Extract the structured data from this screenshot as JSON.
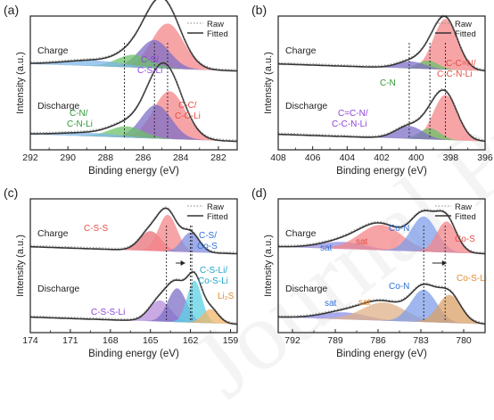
{
  "watermark": "Journal Pre-proof",
  "chart_data": [
    {
      "type": "line",
      "panel_label": "(a)",
      "xlabel": "Binding energy (eV)",
      "ylabel": "Intensity (a.u.)",
      "xlim": [
        292,
        281
      ],
      "xticks": [
        292,
        290,
        288,
        286,
        284,
        282
      ],
      "legend": [
        "Raw",
        "Fitted"
      ],
      "legend_position": "top-right",
      "spectrum_labels": [
        "Charge",
        "Discharge"
      ],
      "peak_labels": [
        {
          "text": "C-S/",
          "x": 285.3,
          "color": "#8e44d9"
        },
        {
          "text": "C-S-Li",
          "x": 285.3,
          "color": "#8e44d9"
        },
        {
          "text": "C-C/",
          "x": 283.3,
          "color": "#e34f45"
        },
        {
          "text": "C-C-Li",
          "x": 283.3,
          "color": "#e34f45"
        },
        {
          "text": "C-N/",
          "x": 288.2,
          "color": "#2e9a35"
        },
        {
          "text": "C-N-Li",
          "x": 288.2,
          "color": "#2e9a35"
        }
      ],
      "dashed_markers": [
        287.0,
        285.4,
        284.7
      ],
      "series": [
        {
          "name": "Charge",
          "offset": 0.5,
          "peaks": [
            {
              "center": 284.7,
              "height": 0.32,
              "width": 0.85,
              "color": "#f4868a"
            },
            {
              "center": 285.4,
              "height": 0.2,
              "width": 0.8,
              "color": "#7d6fc7"
            },
            {
              "center": 286.5,
              "height": 0.09,
              "width": 0.9,
              "color": "#6cc26a"
            },
            {
              "center": 288.6,
              "height": 0.04,
              "width": 1.6,
              "color": "#7fb7e8"
            }
          ]
        },
        {
          "name": "Discharge",
          "offset": 0.0,
          "peaks": [
            {
              "center": 284.6,
              "height": 0.34,
              "width": 0.85,
              "color": "#f4868a"
            },
            {
              "center": 285.3,
              "height": 0.24,
              "width": 0.8,
              "color": "#7d6fc7"
            },
            {
              "center": 286.9,
              "height": 0.08,
              "width": 0.9,
              "color": "#6cc26a"
            },
            {
              "center": 288.8,
              "height": 0.025,
              "width": 1.6,
              "color": "#7fb7e8"
            }
          ]
        }
      ]
    },
    {
      "type": "line",
      "panel_label": "(b)",
      "xlabel": "Binding energy (eV)",
      "ylabel": "Intensity (a.u.)",
      "xlim": [
        408,
        396
      ],
      "xticks": [
        408,
        406,
        404,
        402,
        400,
        398,
        396
      ],
      "legend": [
        "Raw",
        "Fitted"
      ],
      "legend_position": "top-right",
      "spectrum_labels": [
        "Charge",
        "Discharge"
      ],
      "peak_labels": [
        {
          "text": "C-C=N/",
          "x": 397.6,
          "color": "#e34f45"
        },
        {
          "text": "C-C-N-Li",
          "x": 397.6,
          "color": "#e34f45"
        },
        {
          "text": "C-N",
          "x": 400.3,
          "color": "#2e9a35"
        },
        {
          "text": "C=C-N/",
          "x": 402.3,
          "color": "#8e44d9"
        },
        {
          "text": "C-C-N-Li",
          "x": 402.3,
          "color": "#8e44d9"
        }
      ],
      "dashed_markers": [
        400.4,
        399.2,
        398.3
      ],
      "series": [
        {
          "name": "Charge",
          "offset": 0.5,
          "peaks": [
            {
              "center": 398.3,
              "height": 0.36,
              "width": 0.7,
              "color": "#f4868a"
            },
            {
              "center": 399.3,
              "height": 0.06,
              "width": 0.6,
              "color": "#6cc26a"
            },
            {
              "center": 400.3,
              "height": 0.05,
              "width": 0.8,
              "color": "#7d6fc7"
            }
          ]
        },
        {
          "name": "Discharge",
          "offset": 0.0,
          "peaks": [
            {
              "center": 398.3,
              "height": 0.32,
              "width": 0.7,
              "color": "#f4868a"
            },
            {
              "center": 399.2,
              "height": 0.08,
              "width": 0.6,
              "color": "#6cc26a"
            },
            {
              "center": 400.4,
              "height": 0.09,
              "width": 0.8,
              "color": "#7d6fc7"
            }
          ]
        }
      ]
    },
    {
      "type": "line",
      "panel_label": "(c)",
      "xlabel": "Binding energy (eV)",
      "ylabel": "Intensity (a.u.)",
      "xlim": [
        174,
        158.5
      ],
      "xticks": [
        174,
        171,
        168,
        165,
        162,
        159
      ],
      "legend": [
        "Raw",
        "Fitted"
      ],
      "legend_position": "top-right",
      "spectrum_labels": [
        "Charge",
        "Discharge"
      ],
      "peak_labels": [
        {
          "text": "C-S-S",
          "x": 165.8,
          "color": "#e34f45"
        },
        {
          "text": "C-S/",
          "x": 160.6,
          "color": "#2e6fd9"
        },
        {
          "text": "Co-S",
          "x": 160.6,
          "color": "#2e6fd9"
        },
        {
          "text": "C-S-Li/",
          "x": 160.4,
          "color": "#1aa5c8"
        },
        {
          "text": "Co-S-Li",
          "x": 160.4,
          "color": "#1aa5c8"
        },
        {
          "text": "Li₂S",
          "x": 159.7,
          "color": "#e38a2e"
        },
        {
          "text": "C-S-S-Li",
          "x": 165.6,
          "color": "#8e44d9"
        }
      ],
      "dashed_markers": [
        163.8,
        162.0,
        161.9
      ],
      "arrows": [
        {
          "from": 163.1,
          "to": 162.4
        }
      ],
      "series": [
        {
          "name": "Charge",
          "offset": 0.5,
          "peaks": [
            {
              "center": 165.0,
              "height": 0.14,
              "width": 0.8,
              "color": "#e8707a"
            },
            {
              "center": 163.7,
              "height": 0.26,
              "width": 0.7,
              "color": "#f4868a"
            },
            {
              "center": 162.0,
              "height": 0.14,
              "width": 0.65,
              "color": "#7f8fe0"
            }
          ]
        },
        {
          "name": "Discharge",
          "offset": 0.0,
          "peaks": [
            {
              "center": 164.3,
              "height": 0.15,
              "width": 0.8,
              "color": "#b58cd9"
            },
            {
              "center": 163.0,
              "height": 0.24,
              "width": 0.7,
              "color": "#7d6fc7"
            },
            {
              "center": 161.7,
              "height": 0.3,
              "width": 0.55,
              "color": "#5cd1e6"
            },
            {
              "center": 160.5,
              "height": 0.1,
              "width": 0.6,
              "color": "#f0b56a"
            }
          ]
        }
      ]
    },
    {
      "type": "line",
      "panel_label": "(d)",
      "xlabel": "Binding energy (eV)",
      "ylabel": "Intensity (a.u.)",
      "xlim": [
        793,
        778.5
      ],
      "xticks": [
        792,
        789,
        786,
        783,
        780
      ],
      "legend": [
        "Raw",
        "Fitted"
      ],
      "legend_position": "top-right",
      "spectrum_labels": [
        "Charge",
        "Discharge"
      ],
      "peak_labels": [
        {
          "text": "sat",
          "x": 788.8,
          "color": "#2e6fd9"
        },
        {
          "text": "sat",
          "x": 785.6,
          "color": "#e34f45"
        },
        {
          "text": "Co-N",
          "x": 783.5,
          "color": "#2e6fd9"
        },
        {
          "text": "Co-S",
          "x": 780.3,
          "color": "#e34f45"
        },
        {
          "text": "Co-N",
          "x": 783.5,
          "color": "#2e6fd9"
        },
        {
          "text": "Co-S-Li",
          "x": 780.3,
          "color": "#e38a2e"
        },
        {
          "text": "sat",
          "x": 788.5,
          "color": "#2e6fd9"
        },
        {
          "text": "sat",
          "x": 785.8,
          "color": "#e38a2e"
        }
      ],
      "dashed_markers": [
        782.8,
        781.3
      ],
      "arrows": [
        {
          "from": 782.2,
          "to": 781.2
        }
      ],
      "series": [
        {
          "name": "Charge",
          "offset": 0.5,
          "peaks": [
            {
              "center": 788.5,
              "height": 0.05,
              "width": 1.6,
              "color": "#8f8fe6"
            },
            {
              "center": 785.8,
              "height": 0.18,
              "width": 1.5,
              "color": "#f4868a"
            },
            {
              "center": 782.8,
              "height": 0.25,
              "width": 0.9,
              "color": "#7f9fe8"
            },
            {
              "center": 781.2,
              "height": 0.22,
              "width": 0.7,
              "color": "#f4868a"
            }
          ]
        },
        {
          "name": "Discharge",
          "offset": 0.0,
          "peaks": [
            {
              "center": 788.4,
              "height": 0.05,
              "width": 1.6,
              "color": "#8f8fe6"
            },
            {
              "center": 785.6,
              "height": 0.13,
              "width": 1.5,
              "color": "#e0b088"
            },
            {
              "center": 782.8,
              "height": 0.23,
              "width": 0.9,
              "color": "#7f9fe8"
            },
            {
              "center": 781.0,
              "height": 0.2,
              "width": 0.8,
              "color": "#d9a066"
            }
          ]
        }
      ]
    }
  ]
}
